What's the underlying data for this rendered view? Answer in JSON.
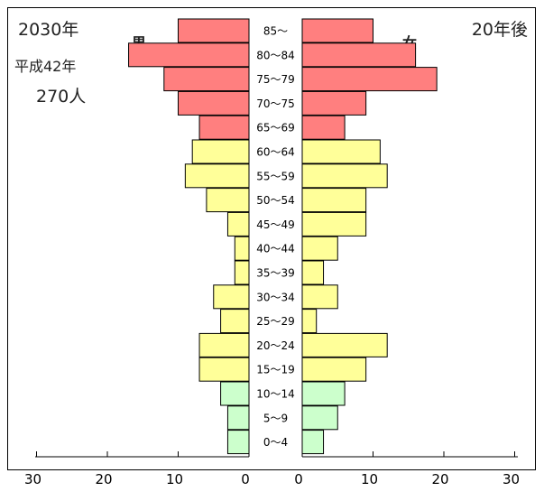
{
  "labels": {
    "year": "2030年",
    "era": "平成42年",
    "population": "270人",
    "after": "20年後",
    "male": "男",
    "female": "女"
  },
  "colors": {
    "elderly": "#ff7f7f",
    "working": "#ffff99",
    "young": "#ccffcc"
  },
  "chart_data": {
    "type": "bar",
    "orientation": "horizontal",
    "subtype": "population-pyramid",
    "categories": [
      "85～",
      "80～84",
      "75～79",
      "70～75",
      "65～69",
      "60～64",
      "55～59",
      "50～54",
      "45～49",
      "40～44",
      "35～39",
      "30～34",
      "25～29",
      "20～24",
      "15～19",
      "10～14",
      "5～9",
      "0～4"
    ],
    "series": [
      {
        "name": "男",
        "values": [
          10,
          17,
          12,
          10,
          7,
          8,
          9,
          6,
          3,
          2,
          2,
          5,
          4,
          7,
          7,
          4,
          3,
          3
        ],
        "groups": [
          "elderly",
          "elderly",
          "elderly",
          "elderly",
          "elderly",
          "working",
          "working",
          "working",
          "working",
          "working",
          "working",
          "working",
          "working",
          "working",
          "working",
          "young",
          "young",
          "young"
        ]
      },
      {
        "name": "女",
        "values": [
          10,
          16,
          19,
          9,
          6,
          11,
          12,
          9,
          9,
          5,
          3,
          5,
          2,
          12,
          9,
          6,
          5,
          3
        ],
        "groups": [
          "elderly",
          "elderly",
          "elderly",
          "elderly",
          "elderly",
          "working",
          "working",
          "working",
          "working",
          "working",
          "working",
          "working",
          "working",
          "working",
          "working",
          "young",
          "young",
          "young"
        ]
      }
    ],
    "xlim": [
      0,
      30
    ],
    "male_ticks": [
      "30",
      "20",
      "10",
      "0"
    ],
    "female_ticks": [
      "0",
      "10",
      "20",
      "30"
    ]
  }
}
